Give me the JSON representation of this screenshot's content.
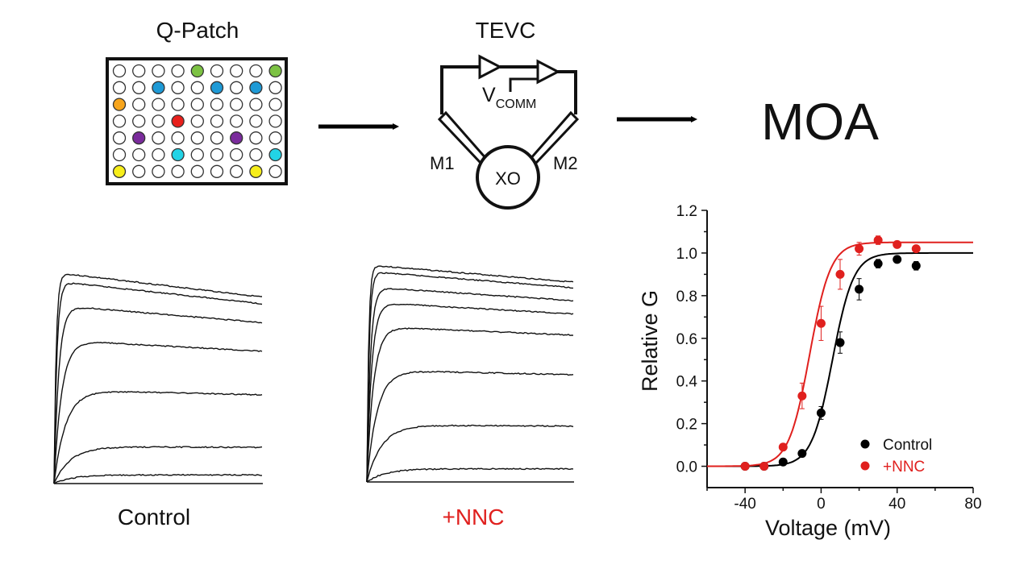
{
  "labels": {
    "qpatch": "Q-Patch",
    "tevc": "TEVC",
    "vcomm_main": "V",
    "vcomm_sub": "COMM",
    "m1": "M1",
    "m2": "M2",
    "xo": "XO",
    "moa": "MOA",
    "control_trace": "Control",
    "nnc_trace": "+NNC"
  },
  "colors": {
    "control": "#000000",
    "nnc": "#e0201e",
    "well_green": "#7cc243",
    "well_blue": "#1e9ad6",
    "well_orange": "#f7a51c",
    "well_red": "#e8201c",
    "well_purple": "#7a2b9c",
    "well_cyan": "#22d3e6",
    "well_yellow": "#f7ee1a"
  },
  "plate": {
    "rows": 7,
    "cols": 9,
    "colored_wells": [
      {
        "row": 0,
        "col": 4,
        "color": "well_green"
      },
      {
        "row": 0,
        "col": 8,
        "color": "well_green"
      },
      {
        "row": 1,
        "col": 2,
        "color": "well_blue"
      },
      {
        "row": 1,
        "col": 5,
        "color": "well_blue"
      },
      {
        "row": 1,
        "col": 7,
        "color": "well_blue"
      },
      {
        "row": 2,
        "col": 0,
        "color": "well_orange"
      },
      {
        "row": 3,
        "col": 3,
        "color": "well_red"
      },
      {
        "row": 4,
        "col": 1,
        "color": "well_purple"
      },
      {
        "row": 4,
        "col": 6,
        "color": "well_purple"
      },
      {
        "row": 5,
        "col": 3,
        "color": "well_cyan"
      },
      {
        "row": 5,
        "col": 8,
        "color": "well_cyan"
      },
      {
        "row": 6,
        "col": 0,
        "color": "well_yellow"
      },
      {
        "row": 6,
        "col": 7,
        "color": "well_yellow"
      }
    ]
  },
  "traces": {
    "control_levels": [
      0.97,
      0.93,
      0.82,
      0.66,
      0.43,
      0.17,
      0.04,
      0.0
    ],
    "nnc_levels": [
      0.99,
      0.96,
      0.89,
      0.82,
      0.71,
      0.51,
      0.26,
      0.06,
      0.0
    ]
  },
  "chart_data": {
    "type": "scatter",
    "xlabel": "Voltage (mV)",
    "ylabel": "Relative G",
    "xlim": [
      -60,
      80
    ],
    "ylim": [
      -0.1,
      1.2
    ],
    "xticks": [
      -40,
      0,
      40,
      80
    ],
    "yticks": [
      0.0,
      0.2,
      0.4,
      0.6,
      0.8,
      1.0,
      1.2
    ],
    "legend_position": "bottom-right",
    "series": [
      {
        "name": "Control",
        "color": "#000000",
        "points": [
          {
            "x": -40,
            "y": 0.0,
            "err": 0.0
          },
          {
            "x": -30,
            "y": 0.0,
            "err": 0.0
          },
          {
            "x": -20,
            "y": 0.02,
            "err": 0.01
          },
          {
            "x": -10,
            "y": 0.06,
            "err": 0.01
          },
          {
            "x": 0,
            "y": 0.25,
            "err": 0.03
          },
          {
            "x": 10,
            "y": 0.58,
            "err": 0.05
          },
          {
            "x": 20,
            "y": 0.83,
            "err": 0.05
          },
          {
            "x": 30,
            "y": 0.95,
            "err": 0.02
          },
          {
            "x": 40,
            "y": 0.97,
            "err": 0.01
          },
          {
            "x": 50,
            "y": 0.94,
            "err": 0.02
          }
        ],
        "fit": {
          "vhalf": 6,
          "slope": 5.5,
          "gmax": 1.0
        }
      },
      {
        "name": "+NNC",
        "color": "#e0201e",
        "points": [
          {
            "x": -40,
            "y": 0.0,
            "err": 0.0
          },
          {
            "x": -30,
            "y": 0.0,
            "err": 0.0
          },
          {
            "x": -20,
            "y": 0.09,
            "err": 0.01
          },
          {
            "x": -10,
            "y": 0.33,
            "err": 0.06
          },
          {
            "x": 0,
            "y": 0.67,
            "err": 0.08
          },
          {
            "x": 10,
            "y": 0.9,
            "err": 0.07
          },
          {
            "x": 20,
            "y": 1.02,
            "err": 0.03
          },
          {
            "x": 30,
            "y": 1.06,
            "err": 0.02
          },
          {
            "x": 40,
            "y": 1.04,
            "err": 0.01
          },
          {
            "x": 50,
            "y": 1.02,
            "err": 0.01
          }
        ],
        "fit": {
          "vhalf": -6,
          "slope": 5.5,
          "gmax": 1.05
        }
      }
    ]
  }
}
